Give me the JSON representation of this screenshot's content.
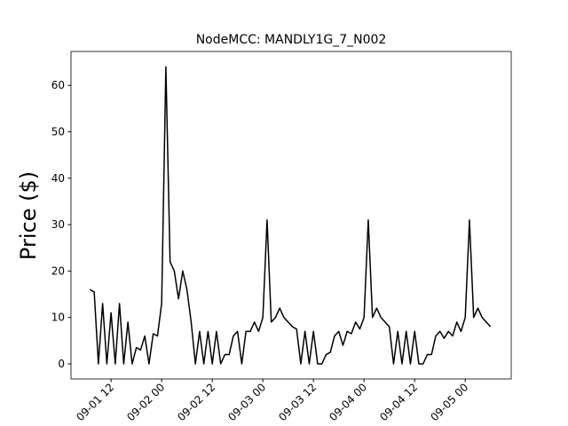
{
  "chart_data": {
    "type": "line",
    "title": "NodeMCC: MANDLY1G_7_N002",
    "ylabel": "Price ($)",
    "x": [
      7,
      8,
      9,
      10,
      11,
      12,
      13,
      14,
      15,
      16,
      17,
      18,
      19,
      20,
      21,
      22,
      23,
      24,
      25,
      26,
      27,
      28,
      29,
      30,
      31,
      32,
      33,
      34,
      35,
      36,
      37,
      38,
      39,
      40,
      41,
      42,
      43,
      44,
      45,
      46,
      47,
      48,
      49,
      50,
      51,
      52,
      53,
      54,
      55,
      56,
      57,
      58,
      59,
      60,
      61,
      62,
      63,
      64,
      65,
      66,
      67,
      68,
      69,
      70,
      71,
      72,
      73,
      74,
      75,
      76,
      77,
      78,
      79,
      80,
      81,
      82,
      83,
      84,
      85,
      86,
      87,
      88,
      89,
      90,
      91,
      92,
      93,
      94,
      95,
      96,
      97,
      98,
      99,
      100,
      101,
      102
    ],
    "series": [
      {
        "color": "#000000",
        "values": [
          16,
          15.5,
          0,
          13,
          0,
          11,
          0,
          13,
          0,
          9,
          0,
          3.5,
          3,
          6,
          0,
          6.5,
          6,
          13,
          64,
          22,
          20,
          14,
          20,
          16,
          9,
          0,
          7,
          0,
          7,
          0,
          7,
          0,
          2,
          2,
          6,
          7,
          0,
          7,
          7,
          9,
          7,
          10,
          31,
          9,
          10,
          12,
          10,
          9,
          8,
          7.5,
          0,
          7,
          0,
          7,
          0,
          0,
          2,
          2.5,
          6,
          7,
          4,
          7,
          6.5,
          9,
          7.5,
          10,
          31,
          10,
          12,
          10,
          9,
          8,
          0,
          7,
          0,
          7,
          0,
          7,
          0,
          0,
          2,
          2,
          6,
          7,
          5.5,
          7,
          6,
          9,
          7,
          10,
          31,
          10,
          12,
          10,
          9,
          8
        ]
      }
    ],
    "xlim": [
      2.5,
      106.9
    ],
    "xticks": [
      {
        "value": 12,
        "label": "09-01 12"
      },
      {
        "value": 24,
        "label": "09-02 00"
      },
      {
        "value": 36,
        "label": "09-02 12"
      },
      {
        "value": 48,
        "label": "09-03 00"
      },
      {
        "value": 60,
        "label": "09-03 12"
      },
      {
        "value": 72,
        "label": "09-04 00"
      },
      {
        "value": 84,
        "label": "09-04 12"
      },
      {
        "value": 96,
        "label": "09-05 00"
      }
    ],
    "ylim": [
      -3.25,
      67.3
    ],
    "yticks": [
      0,
      10,
      20,
      30,
      40,
      50,
      60
    ]
  }
}
